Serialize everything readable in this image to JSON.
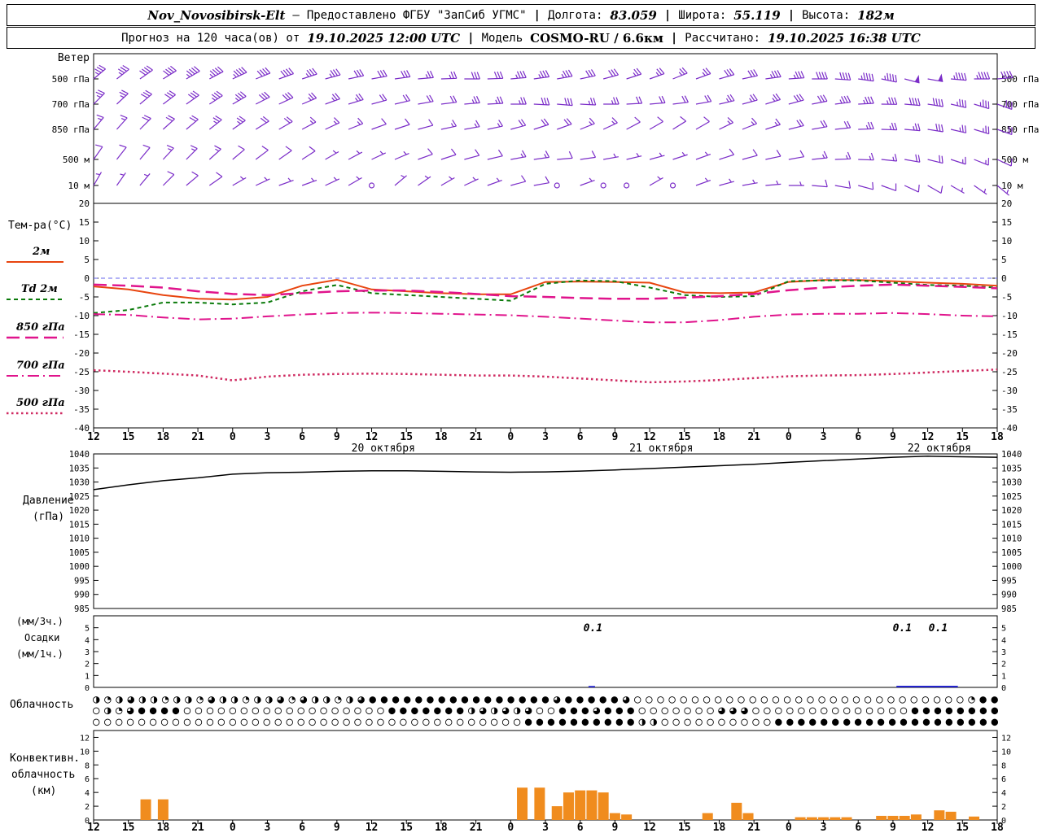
{
  "header": {
    "station": "Nov_Novosibirsk-Elt",
    "dash": "–",
    "provider": "Предоставлено ФГБУ \"ЗапСиб УГМС\"",
    "sep": "|",
    "lon_label": "Долгота:",
    "lon": "83.059",
    "lat_label": "Широта:",
    "lat": "55.119",
    "alt_label": "Высота:",
    "alt": "182м"
  },
  "subheader": {
    "forecast_label": "Прогноз на 120 часа(ов) от",
    "forecast_time": "19.10.2025 12:00 UTC",
    "sep": "|",
    "model_label": "Модель",
    "model": "COSMO-RU / 6.6км",
    "calc_label": "Рассчитано:",
    "calc_time": "19.10.2025 16:38 UTC"
  },
  "panels": {
    "wind": {
      "title": "Ветер"
    },
    "temperature": {
      "title": "Тем-ра(°C)"
    },
    "pressure": {
      "title_line1": "Давление",
      "title_line2": "(гПа)"
    },
    "precipitation": {
      "title_line1": "(мм/3ч.)",
      "title_line2": "Осадки",
      "title_line3": "(мм/1ч.)"
    },
    "cloudiness": {
      "title": "Облачность"
    },
    "convective": {
      "title_line1": "Конвективн.",
      "title_line2": "облачность",
      "title_line3": "(км)"
    }
  },
  "colors": {
    "wind_barb": "#7b2dc8",
    "pressure": "#000000",
    "precip": "#2222cc",
    "convective": "#f08c1e",
    "zero_line": "#6666ee",
    "cloud": "#000000"
  },
  "chart_data": {
    "type": "meteogram",
    "x_axis": {
      "span_hours": 78,
      "hour_step": 3,
      "hour_labels": [
        "12",
        "15",
        "18",
        "21",
        "0",
        "3",
        "6",
        "9",
        "12",
        "15",
        "18",
        "21",
        "0",
        "3",
        "6",
        "9",
        "12",
        "15",
        "18",
        "21",
        "0",
        "3",
        "6",
        "9",
        "12",
        "15",
        "18"
      ],
      "date_labels": [
        {
          "t": 25,
          "label": "20 октября"
        },
        {
          "t": 49,
          "label": "21 октября"
        },
        {
          "t": 73,
          "label": "22 октября"
        }
      ]
    },
    "wind": {
      "type": "wind-barbs",
      "unit": "kt",
      "levels": [
        {
          "label": "500 гПа",
          "dirs": [
            50,
            52,
            55,
            58,
            60,
            62,
            65,
            68,
            70,
            72,
            75,
            78,
            80,
            82,
            85,
            88,
            90,
            88,
            85,
            82,
            80,
            78,
            75,
            72,
            70,
            68,
            70,
            74,
            78,
            82,
            86,
            90,
            94,
            98,
            102,
            105,
            100,
            95,
            90,
            85
          ],
          "speeds": [
            35,
            35,
            40,
            40,
            45,
            45,
            45,
            40,
            40,
            35,
            35,
            30,
            30,
            30,
            25,
            25,
            30,
            30,
            35,
            35,
            35,
            30,
            30,
            25,
            25,
            25,
            25,
            30,
            30,
            35,
            35,
            40,
            40,
            45,
            45,
            50,
            50,
            45,
            45,
            40
          ]
        },
        {
          "label": "700 гПа",
          "dirs": [
            45,
            47,
            50,
            53,
            55,
            57,
            60,
            63,
            65,
            67,
            70,
            73,
            75,
            77,
            80,
            83,
            85,
            87,
            90,
            93,
            95,
            93,
            90,
            87,
            85,
            83,
            80,
            77,
            75,
            73,
            75,
            79,
            83,
            87,
            91,
            95,
            99,
            103,
            107,
            110
          ],
          "speeds": [
            25,
            25,
            30,
            30,
            30,
            35,
            35,
            30,
            30,
            25,
            25,
            25,
            20,
            20,
            20,
            20,
            25,
            25,
            25,
            30,
            30,
            25,
            25,
            20,
            20,
            20,
            20,
            25,
            25,
            25,
            30,
            30,
            35,
            35,
            35,
            40,
            40,
            35,
            35,
            30
          ]
        },
        {
          "label": "850 гПа",
          "dirs": [
            40,
            42,
            45,
            48,
            50,
            52,
            55,
            58,
            60,
            62,
            65,
            68,
            70,
            72,
            75,
            78,
            80,
            78,
            75,
            72,
            70,
            68,
            65,
            62,
            60,
            58,
            60,
            64,
            68,
            72,
            76,
            80,
            84,
            88,
            92,
            95,
            99,
            103,
            107,
            110
          ],
          "speeds": [
            15,
            15,
            20,
            20,
            20,
            25,
            25,
            20,
            20,
            15,
            15,
            15,
            10,
            10,
            10,
            15,
            15,
            15,
            20,
            20,
            20,
            15,
            15,
            10,
            10,
            10,
            10,
            15,
            15,
            15,
            20,
            20,
            20,
            25,
            25,
            25,
            30,
            25,
            25,
            20
          ]
        },
        {
          "label": "500 м",
          "dirs": [
            35,
            38,
            40,
            43,
            45,
            48,
            50,
            53,
            55,
            57,
            60,
            62,
            65,
            67,
            70,
            72,
            75,
            77,
            80,
            82,
            85,
            82,
            80,
            77,
            75,
            72,
            70,
            72,
            75,
            78,
            80,
            84,
            88,
            92,
            96,
            100,
            104,
            108,
            112,
            115
          ],
          "speeds": [
            10,
            10,
            10,
            15,
            15,
            15,
            10,
            10,
            10,
            10,
            5,
            5,
            5,
            5,
            10,
            10,
            10,
            10,
            15,
            15,
            10,
            10,
            5,
            5,
            5,
            5,
            5,
            10,
            10,
            10,
            10,
            15,
            15,
            15,
            15,
            20,
            20,
            15,
            15,
            10
          ]
        },
        {
          "label": "10 м",
          "dirs": [
            30,
            35,
            40,
            45,
            50,
            55,
            60,
            65,
            70,
            70,
            65,
            60,
            0,
            50,
            55,
            60,
            65,
            70,
            75,
            80,
            0,
            70,
            0,
            0,
            60,
            0,
            70,
            75,
            80,
            85,
            90,
            95,
            100,
            105,
            110,
            115,
            120,
            120,
            125,
            130
          ],
          "speeds": [
            5,
            5,
            5,
            10,
            10,
            10,
            5,
            5,
            5,
            5,
            5,
            5,
            0,
            3,
            5,
            5,
            5,
            5,
            10,
            10,
            0,
            5,
            0,
            0,
            3,
            0,
            5,
            5,
            5,
            5,
            5,
            10,
            10,
            10,
            10,
            10,
            10,
            5,
            5,
            5
          ]
        }
      ]
    },
    "temperature": {
      "type": "line",
      "ylim": [
        -40,
        20
      ],
      "step_hours": 3,
      "yticks": [
        20,
        15,
        10,
        5,
        0,
        -5,
        -10,
        -15,
        -20,
        -25,
        -30,
        -35,
        -40
      ],
      "series": [
        {
          "label": "2м",
          "color": "#e8450f",
          "dash": "",
          "width": 2,
          "values": [
            -2.2,
            -3,
            -4.5,
            -5.5,
            -5.7,
            -5,
            -2,
            -0.4,
            -3,
            -3.5,
            -4,
            -4.3,
            -4.3,
            -1,
            -0.9,
            -1,
            -1.2,
            -3.8,
            -4,
            -3.8,
            -1,
            -0.5,
            -0.5,
            -0.8,
            -1.2,
            -1.5,
            -2
          ]
        },
        {
          "label": "Td 2м",
          "color": "#0a7a0a",
          "dash": "5 4",
          "width": 2,
          "values": [
            -9.3,
            -8.5,
            -6.5,
            -6.5,
            -7,
            -6.5,
            -3.5,
            -1.8,
            -4,
            -4.5,
            -5,
            -5.5,
            -6,
            -1.5,
            -0.6,
            -0.8,
            -2.5,
            -4.5,
            -5,
            -4.8,
            -0.8,
            -0.6,
            -0.6,
            -1.2,
            -1.8,
            -2,
            -2.5
          ]
        },
        {
          "label": "850 гПа",
          "color": "#e0148c",
          "dash": "16 7",
          "width": 2.5,
          "values": [
            -1.7,
            -2,
            -2.5,
            -3.5,
            -4.2,
            -4.5,
            -4,
            -3.5,
            -3.3,
            -3.3,
            -3.7,
            -4.2,
            -4.8,
            -5,
            -5.3,
            -5.5,
            -5.5,
            -5.2,
            -4.8,
            -4.2,
            -3.2,
            -2.5,
            -2,
            -1.7,
            -2,
            -2.3,
            -2.7
          ]
        },
        {
          "label": "700 гПа",
          "color": "#e0148c",
          "dash": "14 5 2 5",
          "width": 2,
          "values": [
            -9.6,
            -9.8,
            -10.5,
            -11,
            -10.8,
            -10.2,
            -9.7,
            -9.3,
            -9.2,
            -9.3,
            -9.5,
            -9.7,
            -9.9,
            -10.3,
            -10.8,
            -11.3,
            -11.8,
            -11.8,
            -11.2,
            -10.3,
            -9.7,
            -9.5,
            -9.5,
            -9.3,
            -9.6,
            -10,
            -10.2
          ]
        },
        {
          "label": "500 гПа",
          "color": "#cf2b62",
          "dash": "2.5 3.5",
          "width": 2.5,
          "values": [
            -24.6,
            -25,
            -25.5,
            -26,
            -27.3,
            -26.3,
            -25.8,
            -25.6,
            -25.5,
            -25.6,
            -25.8,
            -26,
            -26,
            -26.3,
            -26.8,
            -27.3,
            -27.8,
            -27.6,
            -27.2,
            -26.7,
            -26.2,
            -26,
            -25.9,
            -25.6,
            -25.2,
            -24.8,
            -24.4
          ]
        }
      ]
    },
    "pressure": {
      "type": "line",
      "ylim": [
        985,
        1040
      ],
      "step_hours": 3,
      "color": "#000000",
      "yticks": [
        1040,
        1035,
        1030,
        1025,
        1020,
        1015,
        1010,
        1005,
        1000,
        995,
        990,
        985
      ],
      "values": [
        1027.3,
        1029,
        1030.5,
        1031.5,
        1032.8,
        1033.3,
        1033.5,
        1033.8,
        1034,
        1034,
        1033.8,
        1033.6,
        1033.5,
        1033.6,
        1033.9,
        1034.3,
        1034.8,
        1035.3,
        1035.8,
        1036.3,
        1037,
        1037.6,
        1038.2,
        1038.8,
        1039.2,
        1039,
        1038.8
      ]
    },
    "precipitation": {
      "type": "bar",
      "ylim": [
        0,
        6
      ],
      "yticks": [
        5,
        4,
        3,
        2,
        1,
        0
      ],
      "bars": [
        {
          "t": 43,
          "v": 0.12
        }
      ],
      "strips": [
        {
          "t0": 69.3,
          "t1": 74.6
        }
      ],
      "value_labels": [
        {
          "t": 43.1,
          "text": "0.1"
        },
        {
          "t": 69.8,
          "text": "0.1"
        },
        {
          "t": 72.9,
          "text": "0.1"
        }
      ]
    },
    "cloudiness": {
      "type": "symbol-rows",
      "glyph_map": {
        "0": "○",
        "1": "◔",
        "2": "◑",
        "3": "◕",
        "4": "●"
      },
      "rows": [
        "2123221221322122313221234444444444444444344444300000000000000000000000000000144",
        "02134444000000000000000000444444423232300444344400000003330000000000000044444444",
        "00000000000000000000000000000000000000444444444422000000000044444444444444444444"
      ]
    },
    "convective": {
      "type": "bar",
      "ylim": [
        0,
        13
      ],
      "unit": "км",
      "color": "#f08c1e",
      "yticks": [
        12,
        10,
        8,
        6,
        4,
        2,
        0
      ],
      "bars": [
        [
          4.5,
          3
        ],
        [
          6,
          3
        ],
        [
          37,
          4.7
        ],
        [
          38.5,
          4.7
        ],
        [
          40,
          2
        ],
        [
          41,
          4
        ],
        [
          42,
          4.3
        ],
        [
          43,
          4.3
        ],
        [
          44,
          4
        ],
        [
          45,
          1
        ],
        [
          46,
          0.8
        ],
        [
          53,
          1
        ],
        [
          55.5,
          2.5
        ],
        [
          56.5,
          1
        ],
        [
          61,
          0.4
        ],
        [
          62,
          0.4
        ],
        [
          63,
          0.4
        ],
        [
          64,
          0.4
        ],
        [
          65,
          0.4
        ],
        [
          68,
          0.6
        ],
        [
          69,
          0.6
        ],
        [
          70,
          0.6
        ],
        [
          71,
          0.8
        ],
        [
          73,
          1.4
        ],
        [
          74,
          1.2
        ],
        [
          76,
          0.5
        ]
      ]
    }
  }
}
